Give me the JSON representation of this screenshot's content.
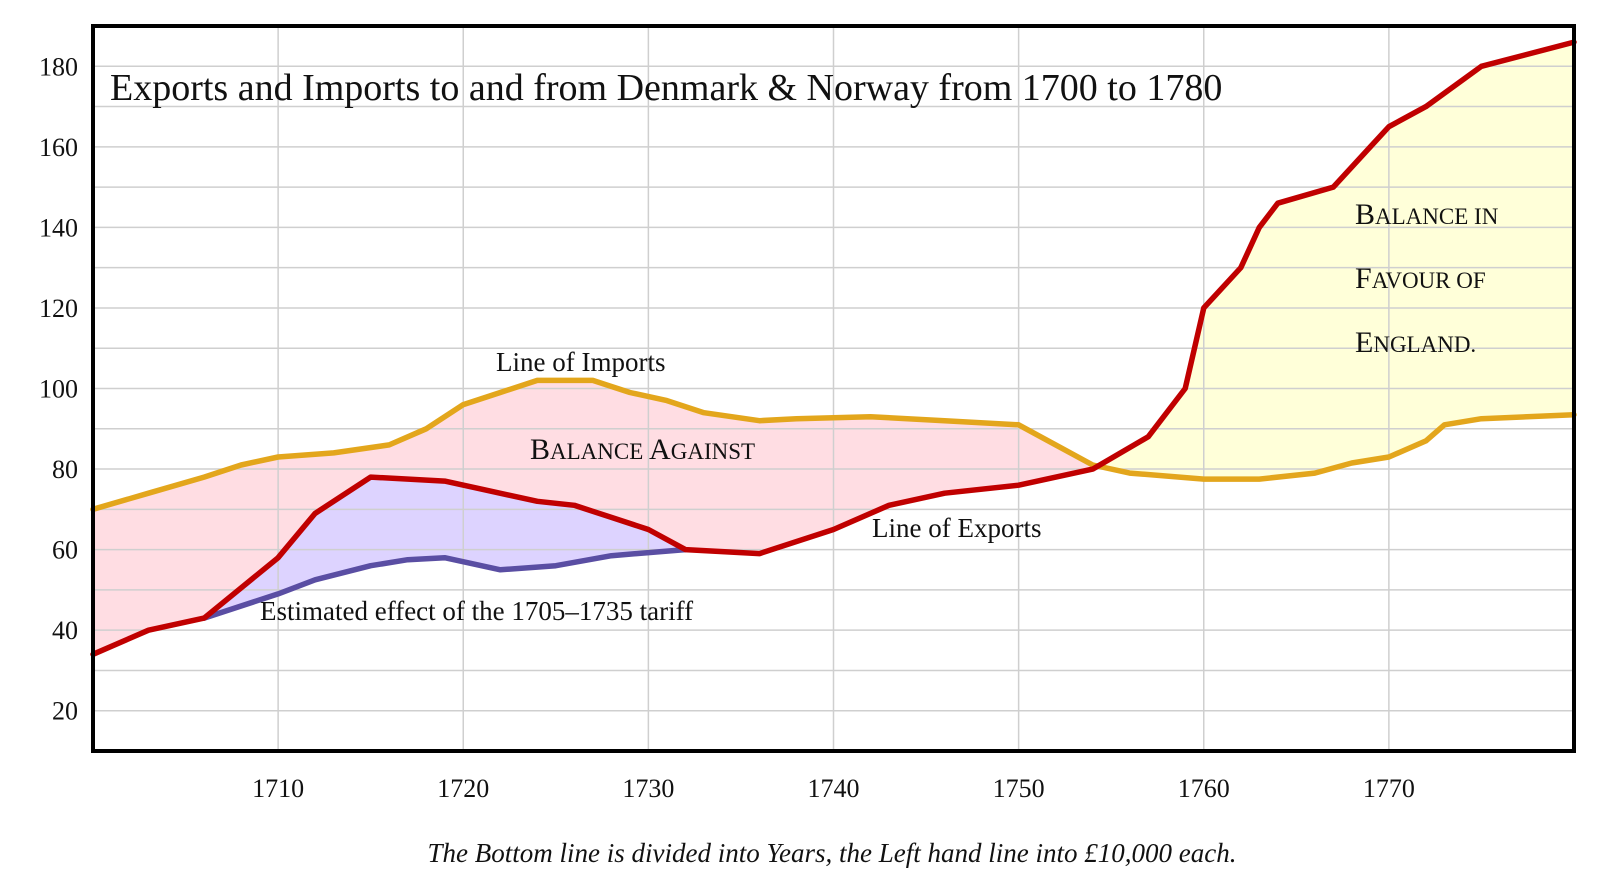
{
  "chart_data": {
    "type": "line",
    "title": "Exports and Imports to and from Denmark & Norway from 1700 to 1780",
    "xlabel": "",
    "ylabel": "",
    "caption": "The Bottom line is divided into Years, the Left hand line into £10,000 each.",
    "xlim": [
      1700,
      1780
    ],
    "ylim": [
      10,
      190
    ],
    "x_ticks": [
      1710,
      1720,
      1730,
      1740,
      1750,
      1760,
      1770
    ],
    "y_ticks": [
      20,
      40,
      60,
      80,
      100,
      120,
      140,
      160,
      180
    ],
    "grid": true,
    "series": [
      {
        "name": "Line of Imports",
        "color": "#e3a61c",
        "points": [
          [
            1700,
            70
          ],
          [
            1703,
            74
          ],
          [
            1706,
            78
          ],
          [
            1708,
            81
          ],
          [
            1710,
            83
          ],
          [
            1713,
            84
          ],
          [
            1716,
            86
          ],
          [
            1718,
            90
          ],
          [
            1720,
            96
          ],
          [
            1722,
            99
          ],
          [
            1724,
            102
          ],
          [
            1727,
            102
          ],
          [
            1729,
            99
          ],
          [
            1731,
            97
          ],
          [
            1733,
            94
          ],
          [
            1736,
            92
          ],
          [
            1738,
            92.5
          ],
          [
            1742,
            93
          ],
          [
            1746,
            92
          ],
          [
            1750,
            91
          ],
          [
            1752,
            86
          ],
          [
            1754,
            81
          ],
          [
            1756,
            79
          ],
          [
            1760,
            77.5
          ],
          [
            1763,
            77.5
          ],
          [
            1766,
            79
          ],
          [
            1768,
            81.5
          ],
          [
            1770,
            83
          ],
          [
            1772,
            87
          ],
          [
            1773,
            91
          ],
          [
            1775,
            92.5
          ],
          [
            1780,
            93.5
          ]
        ]
      },
      {
        "name": "Line of Exports",
        "color": "#c00000",
        "points": [
          [
            1700,
            34
          ],
          [
            1703,
            40
          ],
          [
            1706,
            43
          ],
          [
            1710,
            58
          ],
          [
            1712,
            69
          ],
          [
            1715,
            78
          ],
          [
            1719,
            77
          ],
          [
            1721,
            75
          ],
          [
            1724,
            72
          ],
          [
            1726,
            71
          ],
          [
            1728,
            68
          ],
          [
            1730,
            65
          ],
          [
            1732,
            60
          ],
          [
            1736,
            59
          ],
          [
            1740,
            65
          ],
          [
            1743,
            71
          ],
          [
            1746,
            74
          ],
          [
            1750,
            76
          ],
          [
            1754,
            80
          ],
          [
            1757,
            88
          ],
          [
            1759,
            100
          ],
          [
            1760,
            120
          ],
          [
            1762,
            130
          ],
          [
            1763,
            140
          ],
          [
            1764,
            146
          ],
          [
            1767,
            150
          ],
          [
            1769,
            160
          ],
          [
            1770,
            165
          ],
          [
            1772,
            170
          ],
          [
            1775,
            180
          ],
          [
            1780,
            186
          ]
        ]
      },
      {
        "name": "",
        "color": "#5a4ea3",
        "points": [
          [
            1706,
            43
          ],
          [
            1710,
            49
          ],
          [
            1712,
            52.5
          ],
          [
            1715,
            56
          ],
          [
            1717,
            57.5
          ],
          [
            1719,
            58
          ],
          [
            1722,
            55
          ],
          [
            1725,
            56
          ],
          [
            1728,
            58.5
          ],
          [
            1732,
            60
          ]
        ]
      }
    ],
    "areas": [
      {
        "label": "Balance Against",
        "color": "#ffdde3"
      },
      {
        "label": "Balance in Favour of England.",
        "color": "#ffffd9"
      },
      {
        "label": "Estimated effect of the 1705–1735 tariff",
        "color": "#ddd3ff"
      }
    ],
    "annotations": {
      "imports_label": "Line of Imports",
      "exports_label": "Line of Exports",
      "tariff_label": "Estimated effect of the 1705–1735 tariff",
      "balance_against": "Balance Against",
      "balance_in_favour": [
        "Balance in",
        "Favour of",
        "England."
      ]
    }
  }
}
